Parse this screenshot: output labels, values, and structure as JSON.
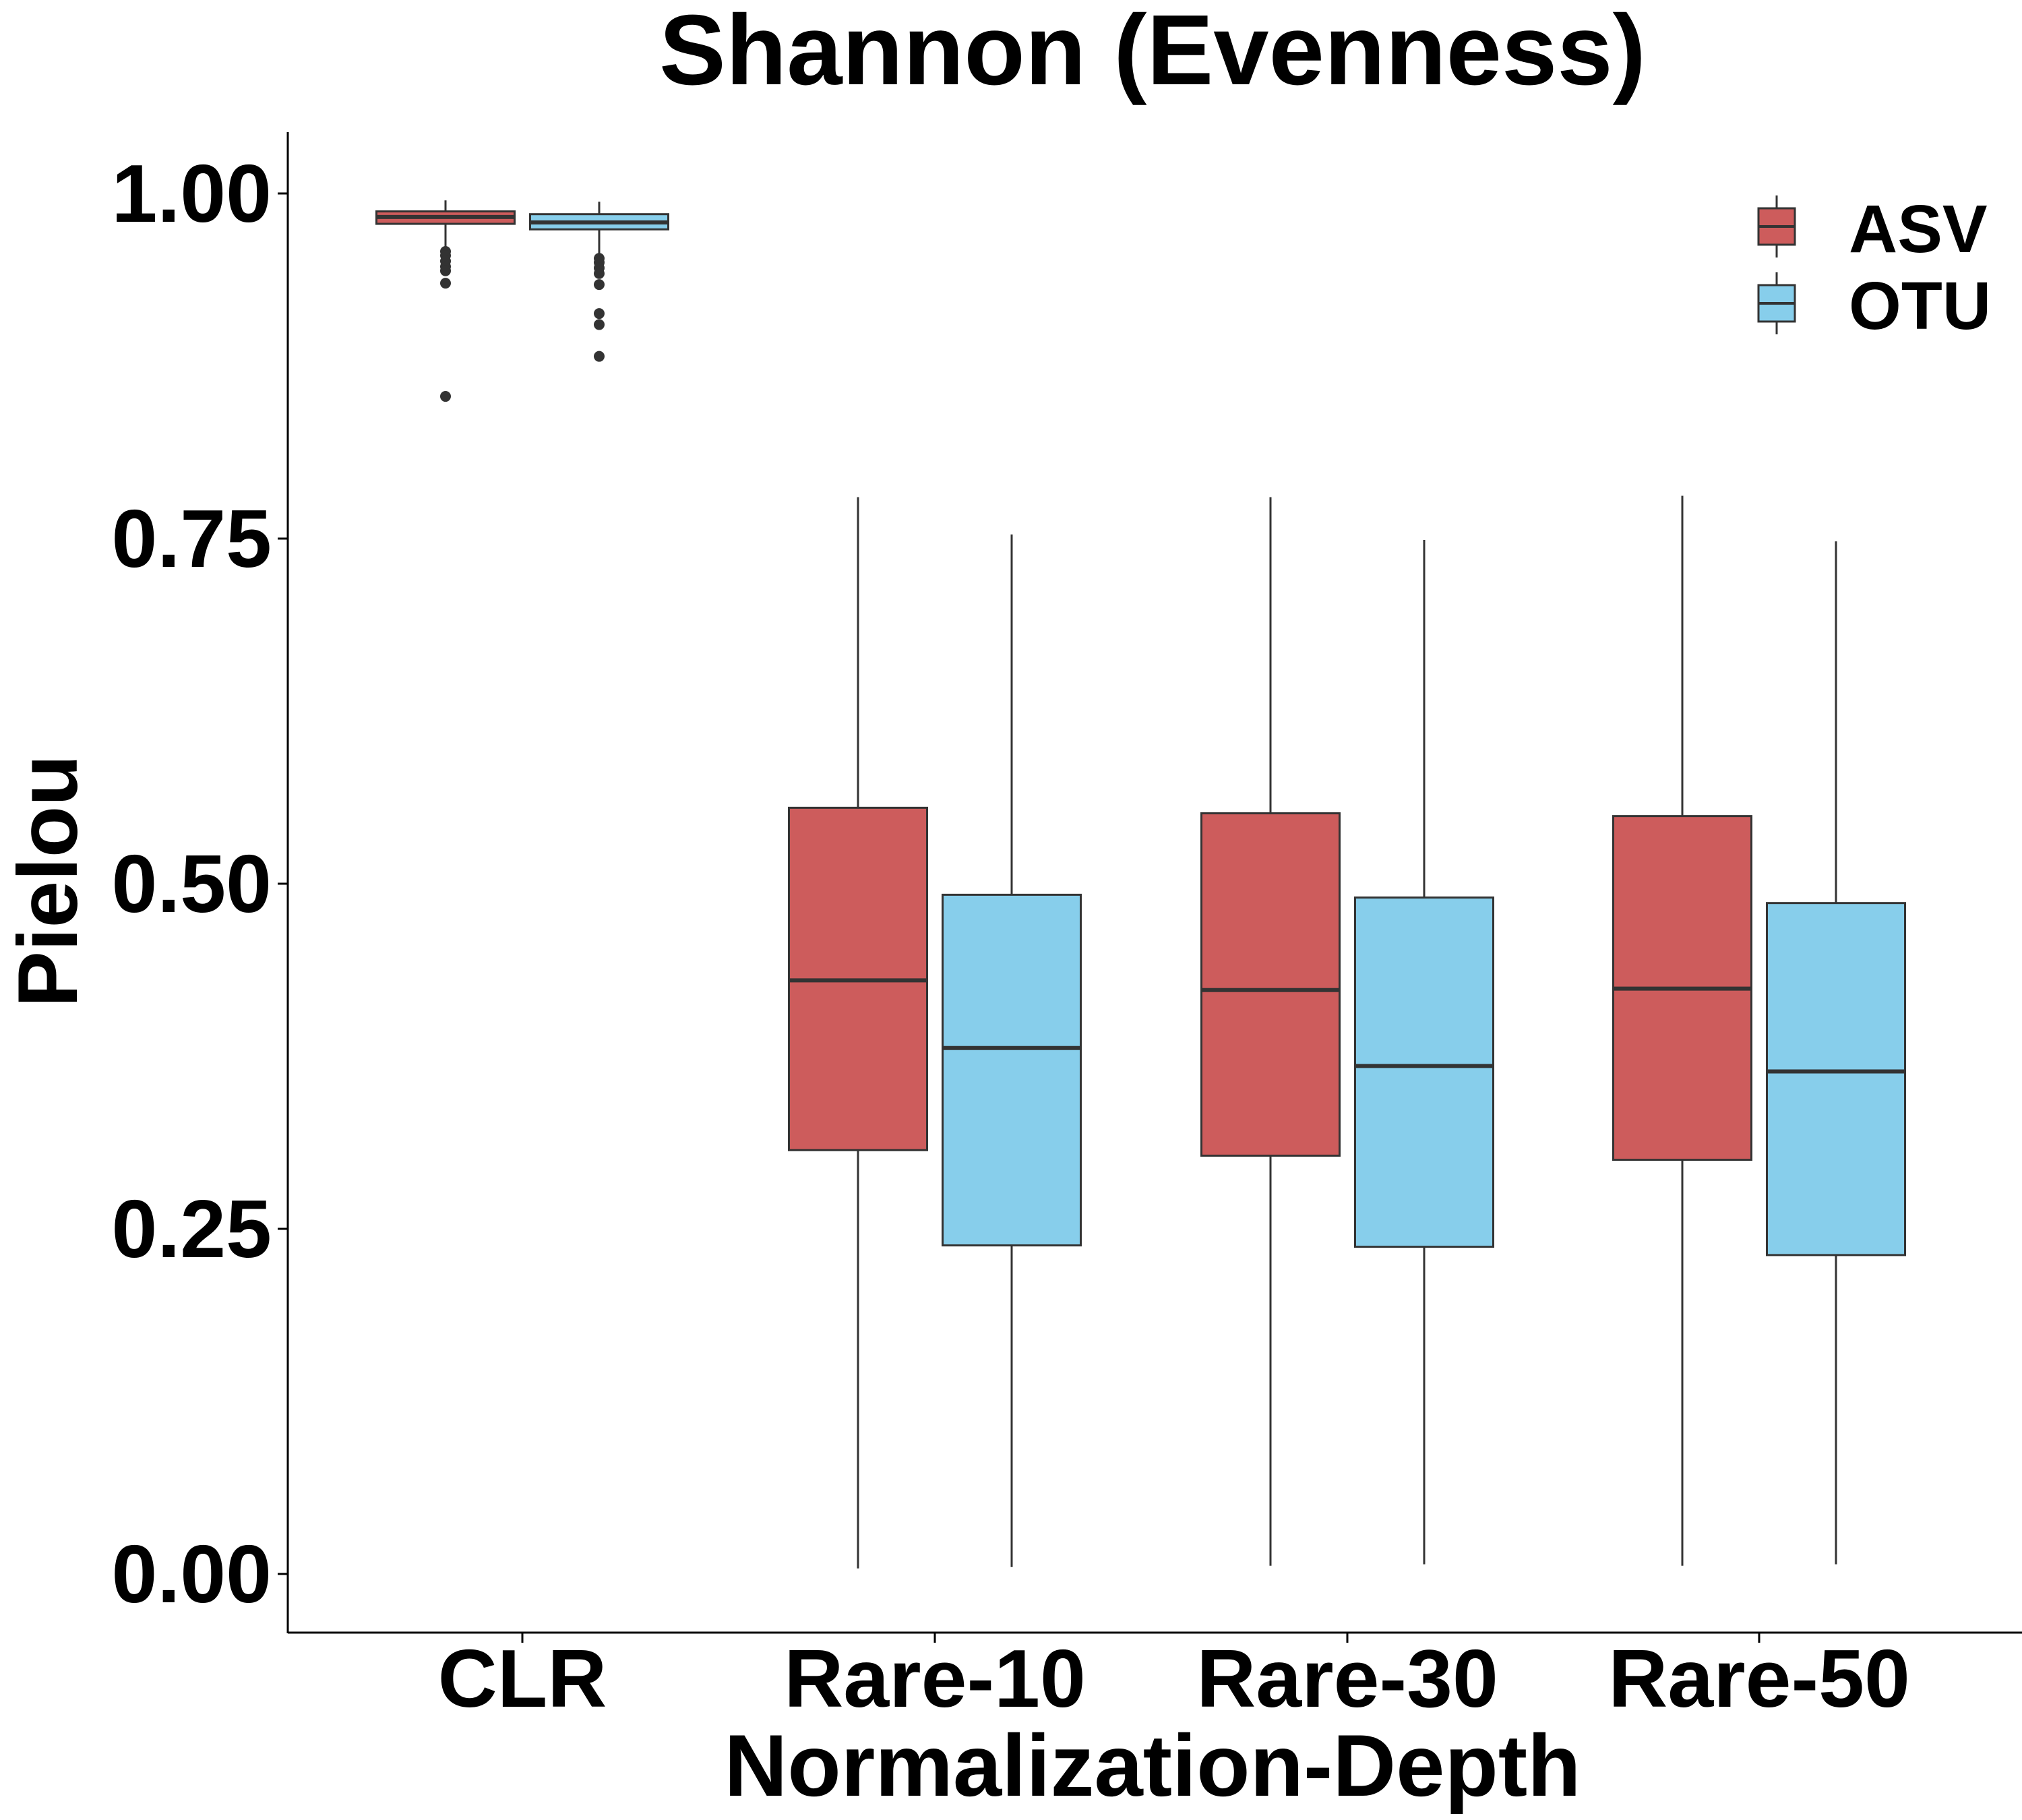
{
  "chart_data": {
    "type": "boxplot",
    "title": "Shannon (Evenness)",
    "xlabel": "Normalization-Depth",
    "ylabel": "Pielou",
    "ylim": [
      -0.045,
      1.044
    ],
    "yticks": [
      "0.00",
      "0.25",
      "0.50",
      "0.75",
      "1.00"
    ],
    "ytick_values": [
      0,
      0.25,
      0.5,
      0.75,
      1.0
    ],
    "categories": [
      "CLR",
      "Rare-10",
      "Rare-30",
      "Rare-50"
    ],
    "legend_position": "top-right",
    "grid": false,
    "series": [
      {
        "name": "ASV",
        "color": "#CD5C5C",
        "boxes": [
          {
            "whisker_low": 0.96,
            "q1": 0.978,
            "median": 0.983,
            "q3": 0.987,
            "whisker_high": 0.995,
            "outliers": [
              0.958,
              0.955,
              0.951,
              0.947,
              0.944,
              0.935,
              0.853
            ]
          },
          {
            "whisker_low": 0.004,
            "q1": 0.307,
            "median": 0.43,
            "q3": 0.555,
            "whisker_high": 0.78
          },
          {
            "whisker_low": 0.006,
            "q1": 0.303,
            "median": 0.423,
            "q3": 0.551,
            "whisker_high": 0.78
          },
          {
            "whisker_low": 0.006,
            "q1": 0.3,
            "median": 0.424,
            "q3": 0.549,
            "whisker_high": 0.781
          }
        ]
      },
      {
        "name": "OTU",
        "color": "#87CEEB",
        "boxes": [
          {
            "whisker_low": 0.955,
            "q1": 0.974,
            "median": 0.979,
            "q3": 0.985,
            "whisker_high": 0.994,
            "outliers": [
              0.953,
              0.95,
              0.946,
              0.942,
              0.934,
              0.913,
              0.905,
              0.882
            ]
          },
          {
            "whisker_low": 0.005,
            "q1": 0.238,
            "median": 0.381,
            "q3": 0.492,
            "whisker_high": 0.753
          },
          {
            "whisker_low": 0.007,
            "q1": 0.237,
            "median": 0.368,
            "q3": 0.49,
            "whisker_high": 0.749
          },
          {
            "whisker_low": 0.007,
            "q1": 0.231,
            "median": 0.364,
            "q3": 0.486,
            "whisker_high": 0.748
          }
        ]
      }
    ]
  }
}
